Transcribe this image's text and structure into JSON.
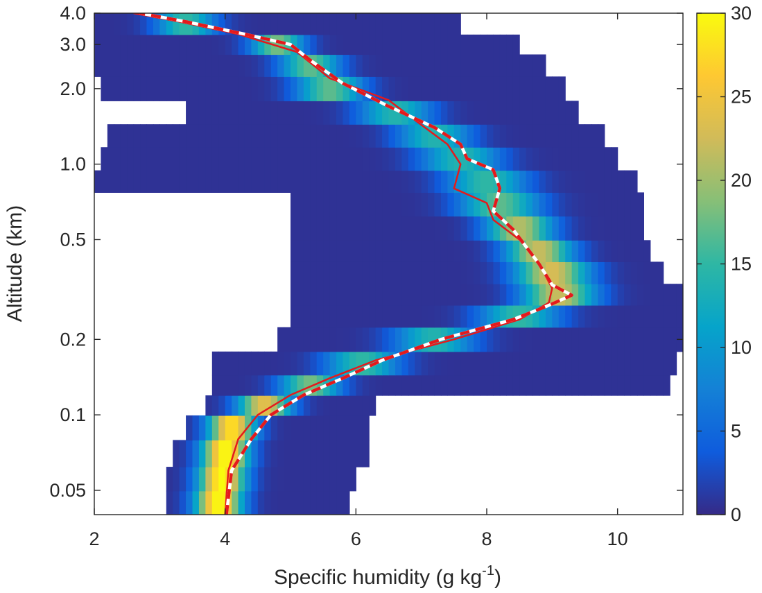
{
  "chart_data": {
    "type": "heatmap",
    "title": "",
    "xlabel": "Specific humidity (g kg",
    "xlabel_superscript": "-1",
    "xlabel_suffix": ")",
    "ylabel": "Altitude (km)",
    "xlim": [
      2,
      11
    ],
    "ylim": [
      0.04,
      4.0
    ],
    "yscale": "log",
    "grid": false,
    "x_ticks": [
      2,
      4,
      6,
      8,
      10
    ],
    "x_tick_labels": [
      "2",
      "4",
      "6",
      "8",
      "10"
    ],
    "y_ticks": [
      0.05,
      0.1,
      0.2,
      0.5,
      1.0,
      2.0,
      3.0,
      4.0
    ],
    "y_tick_labels": [
      "0.05",
      "0.1",
      "0.2",
      "0.5",
      "1.0",
      "2.0",
      "3.0",
      "4.0"
    ],
    "colorbar": {
      "range": [
        0,
        30
      ],
      "ticks": [
        0,
        5,
        10,
        15,
        20,
        25,
        30
      ],
      "tick_labels": [
        "0",
        "5",
        "10",
        "15",
        "20",
        "25",
        "30"
      ],
      "colormap": [
        "#352a87",
        "#0f5cdd",
        "#1481d6",
        "#06a4ca",
        "#2eb7a4",
        "#87bf77",
        "#d1bb59",
        "#fec832",
        "#f9fb0e"
      ]
    },
    "density_rows": [
      {
        "z": 0.045,
        "xmin": 3.1,
        "xmax": 5.9,
        "core": 3.9,
        "spread": 0.35,
        "peak": 30
      },
      {
        "z": 0.055,
        "xmin": 3.1,
        "xmax": 6.0,
        "core": 3.95,
        "spread": 0.35,
        "peak": 30
      },
      {
        "z": 0.07,
        "xmin": 3.2,
        "xmax": 6.2,
        "core": 4.0,
        "spread": 0.35,
        "peak": 30
      },
      {
        "z": 0.09,
        "xmin": 3.4,
        "xmax": 6.2,
        "core": 4.1,
        "spread": 0.35,
        "peak": 28
      },
      {
        "z": 0.11,
        "xmin": 3.7,
        "xmax": 6.3,
        "core": 4.6,
        "spread": 0.4,
        "peak": 24
      },
      {
        "z": 0.13,
        "xmin": 3.8,
        "xmax": 10.8,
        "core": 5.3,
        "spread": 0.45,
        "peak": 18
      },
      {
        "z": 0.16,
        "xmin": 3.8,
        "xmax": 10.9,
        "core": 6.1,
        "spread": 0.55,
        "peak": 15
      },
      {
        "z": 0.2,
        "xmin": 4.8,
        "xmax": 11.0,
        "core": 7.2,
        "spread": 0.6,
        "peak": 14
      },
      {
        "z": 0.25,
        "xmin": 5.0,
        "xmax": 11.0,
        "core": 8.5,
        "spread": 0.6,
        "peak": 15
      },
      {
        "z": 0.3,
        "xmin": 5.0,
        "xmax": 11.0,
        "core": 9.1,
        "spread": 0.55,
        "peak": 22
      },
      {
        "z": 0.37,
        "xmin": 5.0,
        "xmax": 10.7,
        "core": 9.0,
        "spread": 0.55,
        "peak": 23
      },
      {
        "z": 0.45,
        "xmin": 5.0,
        "xmax": 10.5,
        "core": 8.8,
        "spread": 0.5,
        "peak": 22
      },
      {
        "z": 0.55,
        "xmin": 5.0,
        "xmax": 10.4,
        "core": 8.5,
        "spread": 0.5,
        "peak": 21
      },
      {
        "z": 0.7,
        "xmin": 5.0,
        "xmax": 10.4,
        "core": 8.2,
        "spread": 0.6,
        "peak": 17
      },
      {
        "z": 0.85,
        "xmin": 2.0,
        "xmax": 10.3,
        "core": 8.0,
        "spread": 0.6,
        "peak": 15
      },
      {
        "z": 1.05,
        "xmin": 2.1,
        "xmax": 10.0,
        "core": 7.6,
        "spread": 0.6,
        "peak": 14
      },
      {
        "z": 1.3,
        "xmin": 2.2,
        "xmax": 9.8,
        "core": 7.2,
        "spread": 0.55,
        "peak": 14
      },
      {
        "z": 1.6,
        "xmin": 3.4,
        "xmax": 9.4,
        "core": 6.6,
        "spread": 0.55,
        "peak": 14
      },
      {
        "z": 2.0,
        "xmin": 2.1,
        "xmax": 9.2,
        "core": 5.6,
        "spread": 0.5,
        "peak": 17
      },
      {
        "z": 2.5,
        "xmin": 2.0,
        "xmax": 8.9,
        "core": 5.3,
        "spread": 0.45,
        "peak": 17
      },
      {
        "z": 3.0,
        "xmin": 2.0,
        "xmax": 8.5,
        "core": 4.8,
        "spread": 0.4,
        "peak": 18
      },
      {
        "z": 3.6,
        "xmin": 2.0,
        "xmax": 7.6,
        "core": 3.4,
        "spread": 0.45,
        "peak": 15
      }
    ],
    "series": [
      {
        "name": "",
        "style": "solid",
        "color": "#e41a1c",
        "points": [
          [
            4.0,
            0.04
          ],
          [
            4.05,
            0.06
          ],
          [
            4.2,
            0.08
          ],
          [
            4.5,
            0.1
          ],
          [
            5.0,
            0.12
          ],
          [
            5.6,
            0.14
          ],
          [
            6.3,
            0.165
          ],
          [
            7.5,
            0.2
          ],
          [
            8.5,
            0.24
          ],
          [
            8.95,
            0.28
          ],
          [
            9.0,
            0.32
          ],
          [
            8.8,
            0.4
          ],
          [
            8.5,
            0.5
          ],
          [
            8.1,
            0.6
          ],
          [
            8.0,
            0.7
          ],
          [
            7.5,
            0.8
          ],
          [
            7.6,
            1.0
          ],
          [
            7.4,
            1.2
          ],
          [
            6.9,
            1.5
          ],
          [
            6.5,
            1.8
          ],
          [
            5.6,
            2.2
          ],
          [
            5.1,
            2.8
          ],
          [
            4.2,
            3.3
          ],
          [
            3.3,
            3.7
          ],
          [
            2.6,
            4.0
          ]
        ]
      },
      {
        "name": "",
        "style": "dashed",
        "color": "#e41a1c",
        "points": [
          [
            4.02,
            0.04
          ],
          [
            4.1,
            0.06
          ],
          [
            4.4,
            0.08
          ],
          [
            4.7,
            0.1
          ],
          [
            5.2,
            0.12
          ],
          [
            5.8,
            0.14
          ],
          [
            6.4,
            0.165
          ],
          [
            7.3,
            0.2
          ],
          [
            8.4,
            0.24
          ],
          [
            8.9,
            0.27
          ],
          [
            9.3,
            0.3
          ],
          [
            9.0,
            0.33
          ],
          [
            8.8,
            0.4
          ],
          [
            8.4,
            0.55
          ],
          [
            8.1,
            0.65
          ],
          [
            8.2,
            0.8
          ],
          [
            8.1,
            0.95
          ],
          [
            7.7,
            1.05
          ],
          [
            7.6,
            1.2
          ],
          [
            7.2,
            1.4
          ],
          [
            6.5,
            1.7
          ],
          [
            5.8,
            2.1
          ],
          [
            5.3,
            2.6
          ],
          [
            5.0,
            3.0
          ],
          [
            4.3,
            3.3
          ],
          [
            3.4,
            3.7
          ],
          [
            2.7,
            4.0
          ]
        ]
      }
    ]
  }
}
